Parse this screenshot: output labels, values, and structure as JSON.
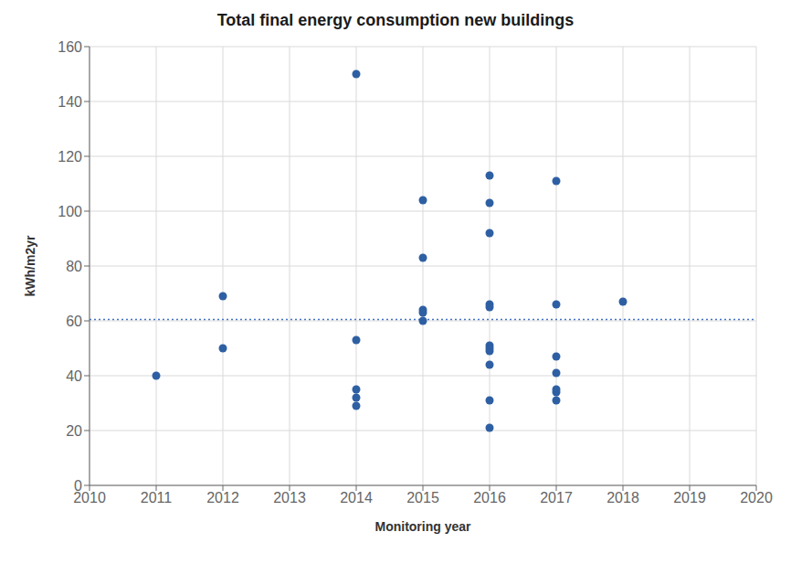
{
  "chart_data": {
    "type": "scatter",
    "title": "Total final energy consumption new buildings",
    "x_label": "Monitoring year",
    "y_label": "kWh/m2yr",
    "x": [
      2011,
      2012,
      2012,
      2014,
      2014,
      2014,
      2014,
      2014,
      2015,
      2015,
      2015,
      2015,
      2015,
      2016,
      2016,
      2016,
      2016,
      2016,
      2016,
      2016,
      2016,
      2016,
      2016,
      2016,
      2017,
      2017,
      2017,
      2017,
      2017,
      2017,
      2017,
      2018
    ],
    "values": [
      40,
      69,
      50,
      150,
      53,
      35,
      32,
      29,
      104,
      83,
      64,
      63,
      60,
      113,
      103,
      92,
      66,
      65,
      51,
      50,
      49,
      44,
      31,
      21,
      111,
      66,
      47,
      41,
      35,
      34,
      31,
      67
    ],
    "color": "#2E5FA3",
    "marker": "circle",
    "trendline": {
      "y": 60.5,
      "color": "#4472C4",
      "line_style": "dotted"
    },
    "xlim": [
      2010,
      2020
    ],
    "ylim": [
      0,
      160
    ],
    "xticks": [
      2010,
      2011,
      2012,
      2013,
      2014,
      2015,
      2016,
      2017,
      2018,
      2019,
      2020
    ],
    "yticks": [
      0,
      20,
      40,
      60,
      80,
      100,
      120,
      140,
      160
    ],
    "grid": true
  }
}
